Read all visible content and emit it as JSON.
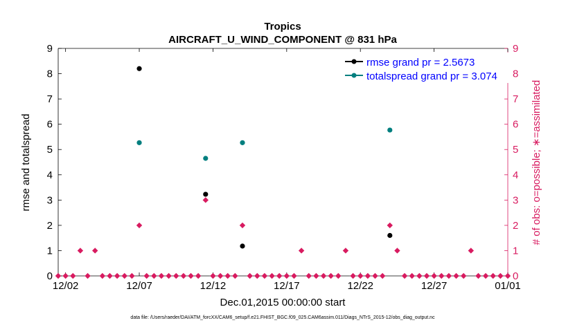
{
  "chart_data": {
    "type": "scatter",
    "title": "Tropics",
    "subtitle": "AIRCRAFT_U_WIND_COMPONENT @ 831 hPa",
    "xlabel": "Dec.01,2015 00:00:00 start",
    "ylabel": "rmse and totalspread",
    "y2label": "# of obs: o=possible; ∗=assimilated",
    "footnote": "data file: /Users/raeder/DAI/ATM_forcXX/CAM6_setup/f.e21.FHIST_BGC.f09_025.CAM6assim.011/Diags_NTrS_2015-12/obs_diag_output.nc",
    "xlim": [
      1.5,
      32
    ],
    "ylim": [
      0,
      9
    ],
    "y2lim": [
      0,
      9
    ],
    "xticks": [
      2,
      7,
      12,
      17,
      22,
      27,
      32
    ],
    "xtick_labels": [
      "12/02",
      "12/07",
      "12/12",
      "12/17",
      "12/22",
      "12/27",
      "01/01"
    ],
    "yticks": [
      0,
      1,
      2,
      3,
      4,
      5,
      6,
      7,
      8,
      9
    ],
    "ytick_labels": [
      "0",
      "1",
      "2",
      "3",
      "4",
      "5",
      "6",
      "7",
      "8",
      "9"
    ],
    "legend_position": "top-right",
    "series": [
      {
        "name": "rmse grand pr = 2.5673",
        "color": "#000000",
        "axis": "left",
        "x": [
          7,
          11.5,
          14,
          24
        ],
        "y": [
          8.2,
          3.23,
          1.18,
          1.6
        ]
      },
      {
        "name": "totalspread grand pr = 3.074",
        "color": "#007f7f",
        "axis": "left",
        "x": [
          7,
          11.5,
          14,
          24
        ],
        "y": [
          5.27,
          4.65,
          5.27,
          5.77
        ]
      },
      {
        "name": "obs possible",
        "color": "#d81b60",
        "axis": "right",
        "marker": "diamond",
        "x": [
          1.5,
          2,
          2.5,
          3,
          3.5,
          4,
          4.5,
          5,
          5.5,
          6,
          6.5,
          7,
          7.5,
          8,
          8.5,
          9,
          9.5,
          10,
          10.5,
          11,
          11.5,
          12,
          12.5,
          13,
          13.5,
          14,
          14.5,
          15,
          15.5,
          16,
          16.5,
          17,
          17.5,
          18,
          18.5,
          19,
          19.5,
          20,
          20.5,
          21,
          21.5,
          22,
          22.5,
          23,
          23.5,
          24,
          24.5,
          25,
          25.5,
          26,
          26.5,
          27,
          27.5,
          28,
          28.5,
          29,
          29.5,
          30,
          30.5,
          31,
          31.5,
          32
        ],
        "y": [
          0,
          0,
          0,
          1,
          0,
          1,
          0,
          0,
          0,
          0,
          0,
          2,
          0,
          0,
          0,
          0,
          0,
          0,
          0,
          0,
          3,
          0,
          0,
          0,
          0,
          2,
          0,
          0,
          0,
          0,
          0,
          0,
          0,
          1,
          0,
          0,
          0,
          0,
          0,
          1,
          0,
          0,
          0,
          0,
          0,
          2,
          1,
          0,
          0,
          0,
          0,
          0,
          0,
          0,
          0,
          0,
          1,
          0,
          0,
          0,
          0,
          0
        ]
      }
    ]
  },
  "colors": {
    "right_axis": "#d81b60",
    "legend_text": "#0000ff",
    "teal": "#007f7f"
  }
}
